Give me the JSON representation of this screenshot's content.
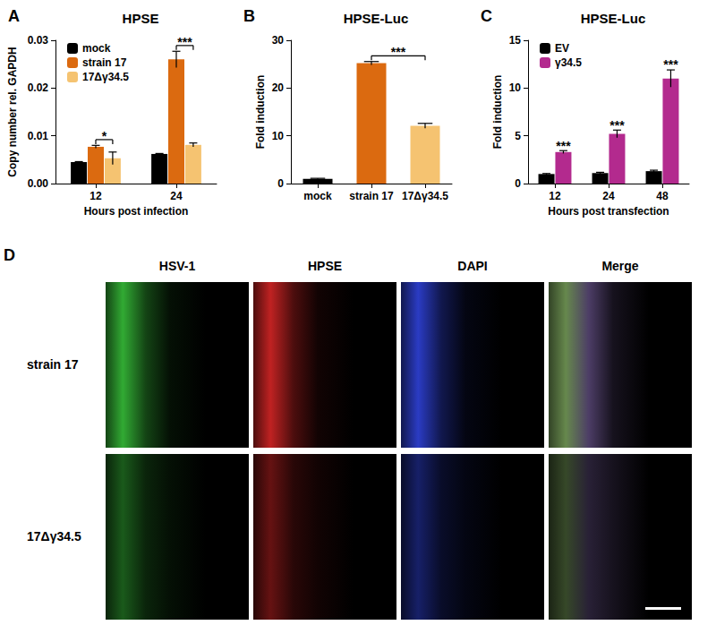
{
  "chart_data": [
    {
      "panel": "A",
      "type": "bar",
      "title": "HPSE",
      "x_label": "Hours post infection",
      "y_label": "Copy number rel. GAPDH",
      "categories": [
        "12",
        "24"
      ],
      "series": [
        {
          "name": "mock",
          "color": "#000000",
          "values": [
            0.0045,
            0.0062
          ],
          "errors": [
            0.0001,
            0.0001
          ]
        },
        {
          "name": "strain 17",
          "color": "#DB6A10",
          "values": [
            0.0077,
            0.026
          ],
          "errors": [
            0.0003,
            0.0017
          ]
        },
        {
          "name": "17Δγ34.5",
          "color": "#F5C371",
          "values": [
            0.0053,
            0.0081
          ],
          "errors": [
            0.0013,
            0.0004
          ]
        }
      ],
      "ylim": [
        0,
        0.03
      ],
      "yticks": [
        {
          "value": 0,
          "label": "0.00"
        },
        {
          "value": 0.01,
          "label": "0.01"
        },
        {
          "value": 0.02,
          "label": "0.02"
        },
        {
          "value": 0.03,
          "label": "0.03"
        }
      ],
      "grid": false,
      "legend": "upper left",
      "annotations": [
        {
          "text": "*",
          "category": "12",
          "between": [
            "strain 17",
            "17Δγ34.5"
          ]
        },
        {
          "text": "***",
          "category": "24",
          "between": [
            "strain 17",
            "17Δγ34.5"
          ]
        }
      ]
    },
    {
      "panel": "B",
      "type": "bar",
      "title": "HPSE-Luc",
      "y_label": "Fold induction",
      "categories": [
        "mock",
        "strain 17",
        "17Δγ34.5"
      ],
      "values": [
        1,
        25.2,
        12.1
      ],
      "errors": [
        0.1,
        0.35,
        0.5
      ],
      "colors": [
        "#000000",
        "#DB6A10",
        "#F5C371"
      ],
      "ylim": [
        0,
        30
      ],
      "yticks": [
        0,
        10,
        20,
        30
      ],
      "grid": false,
      "annotations": [
        {
          "text": "***",
          "between": [
            "strain 17",
            "17Δγ34.5"
          ]
        }
      ]
    },
    {
      "panel": "C",
      "type": "bar",
      "title": "HPSE-Luc",
      "x_label": "Hours post transfection",
      "y_label": "Fold induction",
      "categories": [
        "12",
        "24",
        "48"
      ],
      "series": [
        {
          "name": "EV",
          "color": "#000000",
          "values": [
            1.0,
            1.1,
            1.3
          ],
          "errors": [
            0.05,
            0.08,
            0.1
          ]
        },
        {
          "name": "γ34.5",
          "color": "#B32A8E",
          "values": [
            3.3,
            5.2,
            11.0
          ],
          "errors": [
            0.15,
            0.4,
            0.9
          ]
        }
      ],
      "ylim": [
        0,
        15
      ],
      "yticks": [
        0,
        5,
        10,
        15
      ],
      "grid": false,
      "legend": "upper left",
      "annotations": [
        {
          "text": "***",
          "category": "12",
          "series": "γ34.5"
        },
        {
          "text": "***",
          "category": "24",
          "series": "γ34.5"
        },
        {
          "text": "***",
          "category": "48",
          "series": "γ34.5"
        }
      ]
    }
  ],
  "panel_d": {
    "panel": "D",
    "columns": [
      "HSV-1",
      "HPSE",
      "DAPI",
      "Merge"
    ],
    "rows": [
      "strain 17",
      "17Δγ34.5"
    ]
  }
}
